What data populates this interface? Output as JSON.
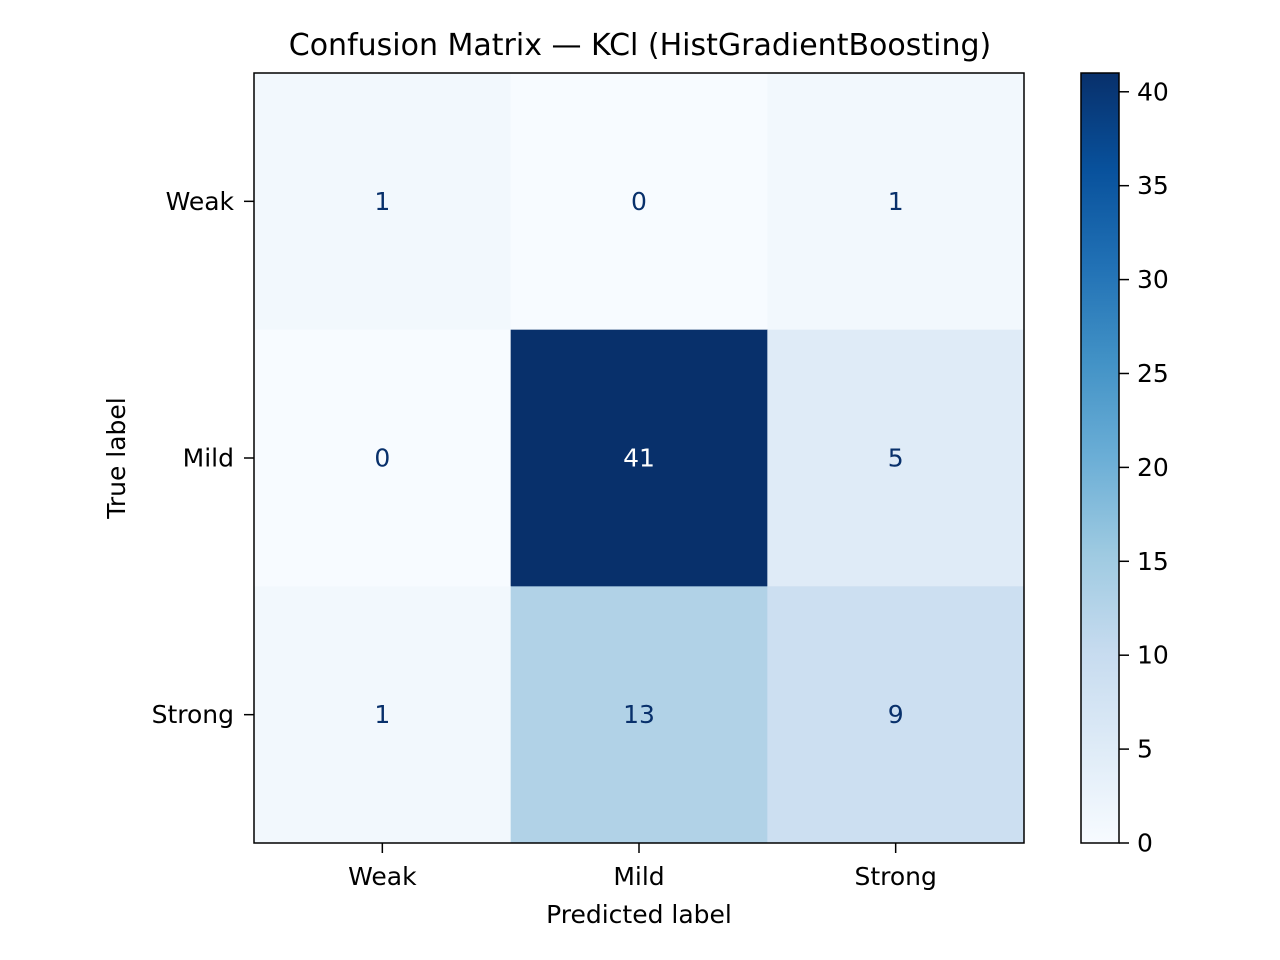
{
  "chart_data": {
    "type": "heatmap",
    "title": "Confusion Matrix — KCl (HistGradientBoosting)",
    "xlabel": "Predicted label",
    "ylabel": "True label",
    "x_categories": [
      "Weak",
      "Mild",
      "Strong"
    ],
    "y_categories": [
      "Weak",
      "Mild",
      "Strong"
    ],
    "matrix": [
      [
        1,
        0,
        1
      ],
      [
        0,
        41,
        5
      ],
      [
        1,
        13,
        9
      ]
    ],
    "colormap": "Blues",
    "colorbar": {
      "range": [
        0,
        41
      ],
      "ticks": [
        0,
        5,
        10,
        15,
        20,
        25,
        30,
        35,
        40
      ]
    },
    "colors": {
      "low": "#f7fbff",
      "high": "#08306b",
      "text_dark": "#08306b",
      "text_light": "#ffffff"
    }
  }
}
